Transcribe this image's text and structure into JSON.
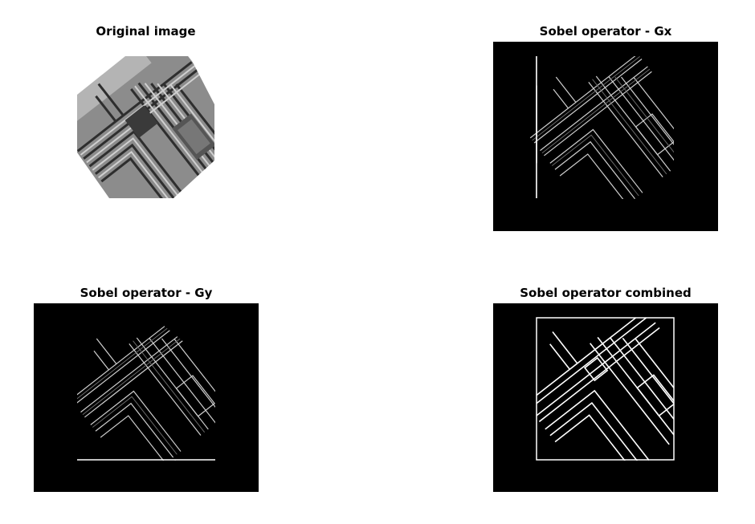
{
  "figure": {
    "panels": [
      {
        "title": "Original image"
      },
      {
        "title": "Sobel operator - Gx"
      },
      {
        "title": "Sobel operator - Gy"
      },
      {
        "title": "Sobel operator combined"
      }
    ]
  },
  "colors": {
    "background": "#ffffff",
    "image_background": "#000000",
    "edge": "#ffffff",
    "original_light": "#9a9a9a",
    "original_dark": "#2a2a2a"
  }
}
